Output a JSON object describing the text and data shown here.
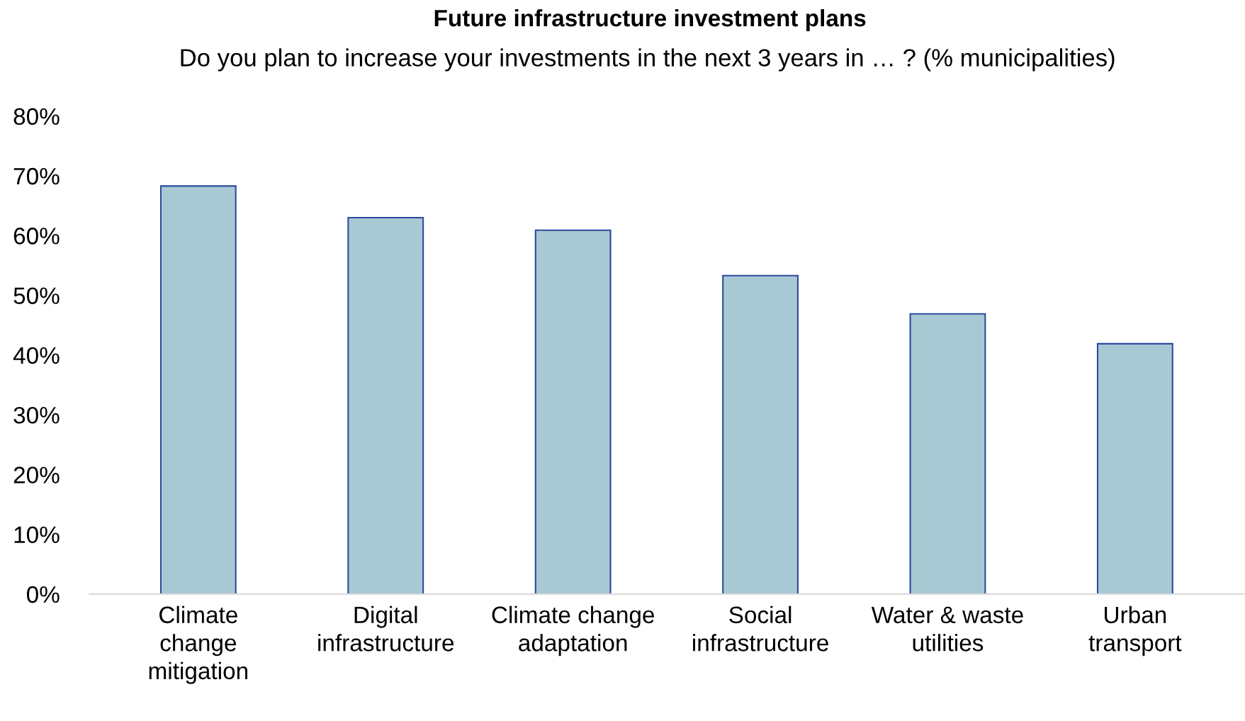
{
  "chart_data": {
    "type": "bar",
    "title": "Future infrastructure investment plans",
    "subtitle": "Do you plan to increase your investments in the next 3 years in … ? (% municipalities)",
    "categories": [
      "Climate\nchange\nmitigation",
      "Digital\ninfrastructure",
      "Climate change\nadaptation",
      "Social\ninfrastructure",
      "Water & waste\nutilities",
      "Urban\ntransport"
    ],
    "series": [
      {
        "color": "#a8c8d4",
        "values": [
          68.3,
          63.0,
          60.9,
          53.3,
          46.9,
          41.9
        ]
      }
    ],
    "ylim": [
      0,
      80
    ],
    "yticks": [
      {
        "value": 0,
        "label": "0%"
      },
      {
        "value": 10,
        "label": "10%"
      },
      {
        "value": 20,
        "label": "20%"
      },
      {
        "value": 30,
        "label": "30%"
      },
      {
        "value": 40,
        "label": "40%"
      },
      {
        "value": 50,
        "label": "50%"
      },
      {
        "value": 60,
        "label": "60%"
      },
      {
        "value": 70,
        "label": "70%"
      },
      {
        "value": 80,
        "label": "80%"
      }
    ],
    "grid": false,
    "legend": false
  }
}
